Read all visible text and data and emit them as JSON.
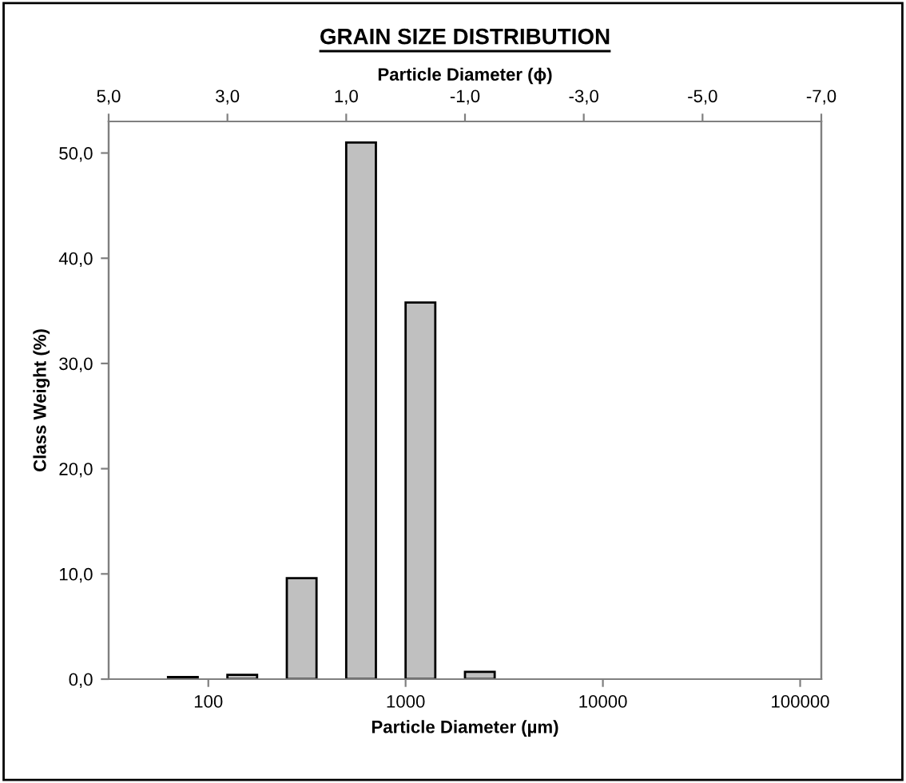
{
  "chart_data": {
    "type": "bar",
    "title": "GRAIN SIZE DISTRIBUTION",
    "xlabel": "Particle Diameter (µm)",
    "x2label": "Particle Diameter (ϕ)",
    "ylabel": "Class Weight (%)",
    "x": [
      74.3,
      148.6,
      297.3,
      594.6,
      1189.2,
      2378.4
    ],
    "values": [
      0.2,
      0.4,
      9.6,
      51.0,
      35.8,
      0.7
    ],
    "color": "#c0c0c0",
    "log": "x",
    "grid": false,
    "legend": false,
    "xlim": [
      31.25,
      128000
    ],
    "xticks": [
      100,
      1000,
      10000,
      100000
    ],
    "x2lim": [
      5,
      -7
    ],
    "x2ticks": [
      {
        "value": 5,
        "label": "5,0"
      },
      {
        "value": 3,
        "label": "3,0"
      },
      {
        "value": 1,
        "label": "1,0"
      },
      {
        "value": -1,
        "label": "-1,0"
      },
      {
        "value": -3,
        "label": "-3,0"
      },
      {
        "value": -5,
        "label": "-5,0"
      },
      {
        "value": -7,
        "label": "-7,0"
      }
    ],
    "ylim": [
      0,
      53
    ],
    "yticks": [
      {
        "value": 0,
        "label": "0,0"
      },
      {
        "value": 10,
        "label": "10,0"
      },
      {
        "value": 20,
        "label": "20,0"
      },
      {
        "value": 30,
        "label": "30,0"
      },
      {
        "value": 40,
        "label": "40,0"
      },
      {
        "value": 50,
        "label": "50,0"
      }
    ]
  }
}
